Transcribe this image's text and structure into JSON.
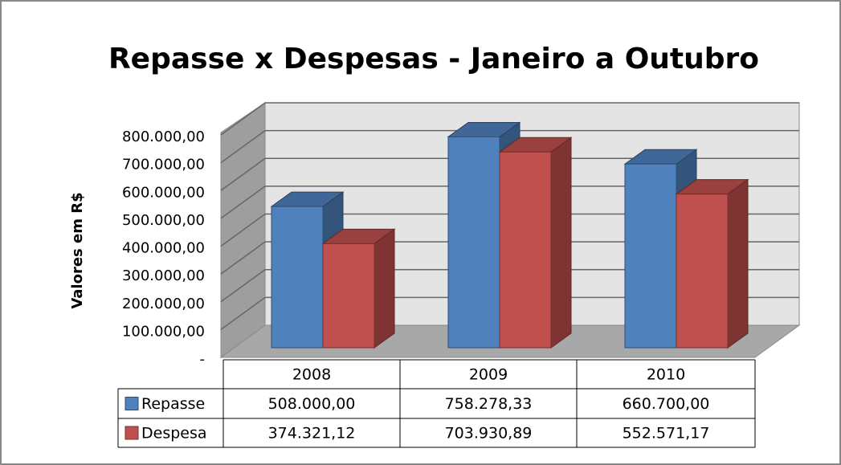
{
  "chart_data": {
    "type": "bar3d",
    "title": "Repasse x Despesas - Janeiro a Outubro",
    "y_label": "Valores em R$",
    "categories": [
      "2008",
      "2009",
      "2010"
    ],
    "series": [
      {
        "name": "Repasse",
        "color": "#4f81bd",
        "values": [
          508000,
          758278.33,
          660700
        ],
        "value_labels": [
          "508.000,00",
          "758.278,33",
          "660.700,00"
        ]
      },
      {
        "name": "Despesa",
        "color": "#c0504d",
        "values": [
          374321.12,
          703930.89,
          552571.17
        ],
        "value_labels": [
          "374.321,12",
          "703.930,89",
          "552.571,17"
        ]
      }
    ],
    "ylim": [
      0,
      800000
    ],
    "yticks": [
      {
        "value": 0,
        "label": "-"
      },
      {
        "value": 100000,
        "label": "100.000,00"
      },
      {
        "value": 200000,
        "label": "200.000,00"
      },
      {
        "value": 300000,
        "label": "300.000,00"
      },
      {
        "value": 400000,
        "label": "400.000,00"
      },
      {
        "value": 500000,
        "label": "500.000,00"
      },
      {
        "value": 600000,
        "label": "600.000,00"
      },
      {
        "value": 700000,
        "label": "700.000,00"
      },
      {
        "value": 800000,
        "label": "800.000,00"
      }
    ],
    "grid": true
  }
}
